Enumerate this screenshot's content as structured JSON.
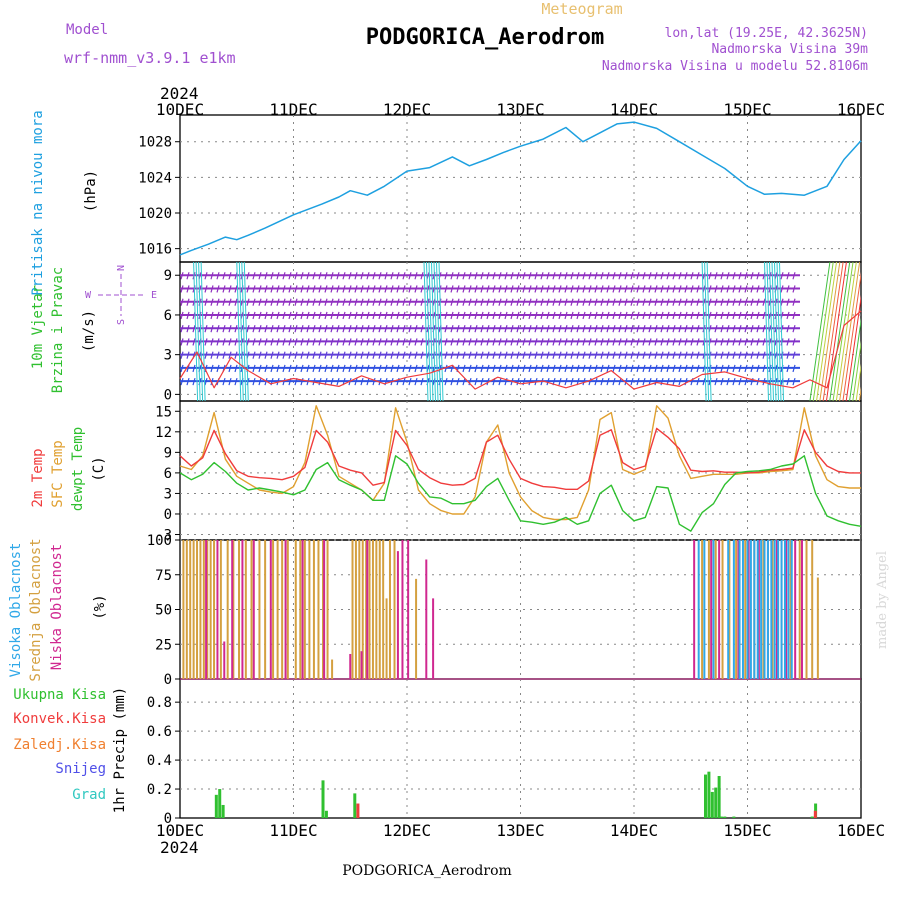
{
  "header": {
    "model_label": "Model",
    "model_name": "wrf-nmm_v3.9.1 e1km",
    "meteogram_label": "Meteogram",
    "station_title": "PODGORICA_Aerodrom",
    "coords": "lon,lat (19.25E, 42.3625N)",
    "elevation": "Nadmorska Visina 39m",
    "model_elevation": "Nadmorska Visina u modelu 52.8106m"
  },
  "footer": {
    "station": "PODGORICA_Aerodrom",
    "watermark": "made by Angel"
  },
  "time_axis": {
    "year": "2024",
    "ticks": [
      "10DEC",
      "11DEC",
      "12DEC",
      "13DEC",
      "14DEC",
      "15DEC",
      "16DEC"
    ]
  },
  "compass": {
    "north": "N",
    "south": "S",
    "east": "E",
    "west": "W"
  },
  "colors": {
    "pressure": "#1ea0e0",
    "temp2m": "#f03c3c",
    "sfc_temp": "#e0a030",
    "dewpoint": "#30c030",
    "cloud_high": "#30a8e8",
    "cloud_mid": "#d4a040",
    "cloud_low": "#d02890",
    "precip_total": "#30c030",
    "precip_conv": "#f03c3c",
    "precip_frozen": "#f08030",
    "precip_snow": "#5050e8",
    "precip_hail": "#30c8c0"
  },
  "chart_data": [
    {
      "type": "line",
      "ylabel": "Pritisak na nivou mora",
      "units": "(hPa)",
      "ylim": [
        1014.5,
        1031
      ],
      "yticks": [
        1016,
        1020,
        1024,
        1028
      ],
      "x_days": [
        0,
        0.1,
        0.25,
        0.4,
        0.5,
        0.6,
        0.75,
        1,
        1.25,
        1.4,
        1.5,
        1.65,
        1.8,
        2,
        2.2,
        2.4,
        2.55,
        2.7,
        2.85,
        3,
        3.2,
        3.4,
        3.55,
        3.7,
        3.85,
        4,
        4.2,
        4.4,
        4.6,
        4.8,
        5,
        5.15,
        5.3,
        5.5,
        5.7,
        5.85,
        6
      ],
      "series": [
        {
          "name": "pressure",
          "values": [
            1015.3,
            1015.8,
            1016.5,
            1017.3,
            1017,
            1017.5,
            1018.3,
            1019.8,
            1021,
            1021.8,
            1022.5,
            1022,
            1023,
            1024.7,
            1025.1,
            1026.3,
            1025.3,
            1026,
            1026.8,
            1027.5,
            1028.3,
            1029.6,
            1028,
            1029,
            1030,
            1030.2,
            1029.5,
            1028,
            1026.5,
            1025,
            1023,
            1022.1,
            1022.2,
            1022,
            1023,
            1026,
            1028.1
          ]
        }
      ]
    },
    {
      "type": "line",
      "ylabel": "10m Vjetar Brzina i Pravac",
      "units": "(m/s)",
      "ylim": [
        -0.5,
        10
      ],
      "yticks": [
        0,
        3,
        6,
        9
      ],
      "x_days": [
        0,
        0.15,
        0.3,
        0.45,
        0.6,
        0.8,
        1,
        1.2,
        1.4,
        1.6,
        1.8,
        2,
        2.2,
        2.4,
        2.6,
        2.8,
        3,
        3.2,
        3.4,
        3.6,
        3.8,
        4,
        4.2,
        4.4,
        4.6,
        4.8,
        5,
        5.2,
        5.4,
        5.55,
        5.7,
        5.85,
        6
      ],
      "series": [
        {
          "name": "wind_speed",
          "values": [
            1.2,
            3.2,
            0.5,
            2.8,
            1.8,
            0.8,
            1.2,
            0.9,
            0.6,
            1.4,
            0.8,
            1.3,
            1.6,
            2.2,
            0.4,
            1.3,
            0.8,
            1,
            0.5,
            1,
            1.8,
            0.4,
            0.9,
            0.6,
            1.5,
            1.7,
            1.2,
            0.8,
            0.5,
            1.1,
            0.5,
            5.2,
            6.3
          ]
        }
      ]
    },
    {
      "type": "line",
      "ylabels": [
        "2m Temp",
        "SFC Temp",
        "dewpt Temp"
      ],
      "units": "(C)",
      "ylim": [
        -3.8,
        16.5
      ],
      "yticks": [
        -3,
        0,
        3,
        6,
        9,
        12,
        15
      ],
      "x_days": [
        0,
        0.1,
        0.2,
        0.3,
        0.4,
        0.5,
        0.6,
        0.7,
        0.8,
        0.9,
        1,
        1.1,
        1.2,
        1.3,
        1.4,
        1.5,
        1.6,
        1.7,
        1.8,
        1.9,
        2,
        2.1,
        2.2,
        2.3,
        2.4,
        2.5,
        2.6,
        2.7,
        2.8,
        2.9,
        3,
        3.1,
        3.2,
        3.3,
        3.4,
        3.5,
        3.6,
        3.7,
        3.8,
        3.9,
        4,
        4.1,
        4.2,
        4.3,
        4.4,
        4.5,
        4.6,
        4.7,
        4.8,
        4.9,
        5,
        5.1,
        5.2,
        5.3,
        5.4,
        5.5,
        5.6,
        5.7,
        5.8,
        5.9,
        6
      ],
      "series": [
        {
          "name": "2m Temp",
          "values": [
            8.5,
            7,
            8.2,
            12.2,
            8.8,
            6.3,
            5.5,
            5.3,
            5.2,
            5,
            5.5,
            6.8,
            12.2,
            10.5,
            7,
            6.4,
            6,
            4.2,
            4.6,
            12.2,
            10,
            6.5,
            5.3,
            4.5,
            4.2,
            4.3,
            5.2,
            10.5,
            11.5,
            8,
            5.2,
            4.5,
            4,
            3.9,
            3.6,
            3.6,
            4.8,
            11.5,
            12.3,
            7.5,
            6.5,
            7,
            12.5,
            11.2,
            9.5,
            6.4,
            6.2,
            6.3,
            6.1,
            6.1,
            6,
            6.1,
            6.4,
            6.5,
            6.7,
            12.3,
            9,
            7,
            6.2,
            6,
            6
          ]
        },
        {
          "name": "SFC Temp",
          "values": [
            7,
            6.5,
            8.5,
            14.8,
            8,
            5.5,
            4.5,
            3.5,
            3.2,
            3,
            4,
            7.5,
            15.8,
            11.5,
            5.5,
            4.5,
            3.5,
            2,
            4.5,
            15.5,
            10.5,
            3.5,
            1.5,
            0.5,
            0,
            0,
            2.5,
            10.5,
            13,
            6,
            2.5,
            0.5,
            -0.5,
            -0.8,
            -0.8,
            -0.5,
            3.5,
            13.8,
            14.8,
            6.5,
            5.8,
            6.5,
            15.8,
            14,
            8.5,
            5.2,
            5.5,
            5.8,
            5.8,
            5.8,
            6,
            6,
            6.2,
            6.3,
            6.5,
            15.5,
            8.5,
            5,
            4,
            3.8,
            3.8
          ]
        },
        {
          "name": "dewpt Temp",
          "values": [
            6,
            5,
            5.8,
            7.5,
            6.2,
            4.5,
            3.5,
            3.8,
            3.5,
            3.2,
            2.8,
            3.5,
            6.5,
            7.5,
            5,
            4.2,
            3.5,
            2,
            2,
            8.5,
            7.3,
            4.5,
            2.5,
            2.3,
            1.5,
            1.5,
            2,
            4,
            5.2,
            2,
            -1,
            -1.2,
            -1.5,
            -1.2,
            -0.5,
            -1.5,
            -1,
            3,
            4.2,
            0.5,
            -1,
            -0.5,
            4,
            3.8,
            -1.5,
            -2.5,
            0.2,
            1.5,
            4.3,
            6,
            6.2,
            6.3,
            6.5,
            7,
            7.3,
            8.5,
            3,
            -0.3,
            -1,
            -1.5,
            -1.8
          ]
        }
      ]
    },
    {
      "type": "bar",
      "ylabels": [
        "Visoka Oblacnost",
        "Srednja Oblacnost",
        "Niska Oblacnost"
      ],
      "units": "(%)",
      "ylim": [
        0,
        100
      ],
      "yticks": [
        0,
        25,
        50,
        75,
        100
      ],
      "series": [
        {
          "name": "Visoka Oblacnost",
          "x_days": [
            4.57,
            4.62,
            4.7,
            4.83,
            4.88,
            4.93,
            4.96,
            5.0,
            5.03,
            5.06,
            5.09,
            5.12,
            5.15,
            5.18,
            5.21,
            5.24,
            5.27,
            5.3,
            5.33,
            5.36,
            5.39
          ],
          "values": [
            100,
            100,
            100,
            100,
            100,
            100,
            100,
            100,
            100,
            100,
            100,
            100,
            100,
            100,
            100,
            100,
            100,
            100,
            100,
            100,
            100
          ]
        },
        {
          "name": "Srednja Oblacnost",
          "x_days": [
            0.03,
            0.06,
            0.09,
            0.12,
            0.15,
            0.18,
            0.21,
            0.24,
            0.27,
            0.3,
            0.36,
            0.42,
            0.47,
            0.52,
            0.58,
            0.63,
            0.7,
            0.75,
            0.82,
            0.86,
            0.9,
            0.95,
            1.02,
            1.06,
            1.1,
            1.14,
            1.18,
            1.22,
            1.26,
            1.3,
            1.34,
            1.52,
            1.55,
            1.58,
            1.61,
            1.64,
            1.67,
            1.7,
            1.73,
            1.76,
            1.79,
            1.82,
            1.85,
            1.89,
            2.08,
            4.6,
            4.66,
            4.72,
            4.78,
            4.84,
            4.9,
            4.98,
            5.06,
            5.14,
            5.22,
            5.3,
            5.38,
            5.46,
            5.52,
            5.57,
            5.62
          ],
          "values": [
            100,
            100,
            100,
            100,
            100,
            100,
            100,
            100,
            100,
            100,
            100,
            100,
            100,
            100,
            100,
            100,
            100,
            100,
            100,
            100,
            100,
            100,
            100,
            100,
            100,
            100,
            100,
            100,
            100,
            100,
            14,
            100,
            100,
            100,
            100,
            100,
            100,
            100,
            100,
            100,
            100,
            58,
            100,
            100,
            72,
            100,
            100,
            100,
            100,
            100,
            100,
            100,
            100,
            100,
            100,
            100,
            100,
            100,
            100,
            100,
            73
          ]
        },
        {
          "name": "Niska Oblacnost",
          "x_days": [
            0.23,
            0.33,
            0.39,
            0.46,
            0.55,
            0.65,
            0.8,
            0.93,
            1.08,
            1.27,
            1.5,
            1.6,
            1.65,
            1.92,
            1.96,
            2.01,
            2.17,
            2.23,
            4.53,
            4.68,
            4.75,
            4.92,
            5.01,
            5.1,
            5.18,
            5.26,
            5.34,
            5.42,
            5.48
          ],
          "values": [
            100,
            100,
            27,
            100,
            100,
            100,
            100,
            100,
            100,
            100,
            18,
            20,
            100,
            92,
            100,
            100,
            86,
            58,
            100,
            100,
            100,
            100,
            100,
            100,
            100,
            100,
            100,
            100,
            100
          ]
        }
      ]
    },
    {
      "type": "bar",
      "ylabel": "1hr Precip",
      "units": "(mm)",
      "ylim": [
        0,
        0.96
      ],
      "yticks": [
        0,
        0.2,
        0.4,
        0.6,
        0.8
      ],
      "series": [
        {
          "name": "Ukupna Kisa",
          "x_days": [
            0.32,
            0.35,
            0.38,
            1.26,
            1.29,
            1.54,
            4.63,
            4.66,
            4.69,
            4.72,
            4.75,
            4.77,
            4.8,
            4.88,
            5.57,
            5.6
          ],
          "values": [
            0.16,
            0.2,
            0.09,
            0.26,
            0.05,
            0.17,
            0.3,
            0.32,
            0.18,
            0.21,
            0.29,
            0.01,
            0.01,
            0.01,
            0.01,
            0.1
          ]
        },
        {
          "name": "Konvek.Kisa",
          "x_days": [
            1.55,
            5.58
          ],
          "values": [
            0.1,
            0.05
          ]
        }
      ],
      "legend": [
        "Ukupna Kisa",
        "Konvek.Kisa",
        "Zaledj.Kisa",
        "Snijeg",
        "Grad"
      ]
    }
  ]
}
